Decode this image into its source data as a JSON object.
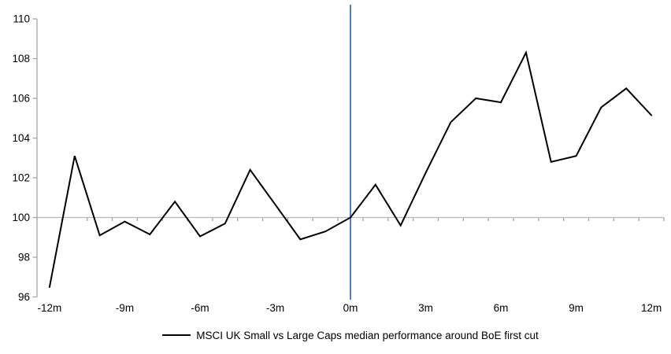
{
  "chart_data": {
    "type": "line",
    "title": "",
    "xlabel": "",
    "ylabel": "",
    "x": [
      -12,
      -11,
      -10,
      -9,
      -8,
      -7,
      -6,
      -5,
      -4,
      -3,
      -2,
      -1,
      0,
      1,
      2,
      3,
      4,
      5,
      6,
      7,
      8,
      9,
      10,
      11,
      12
    ],
    "series": [
      {
        "name": "MSCI UK Small vs Large Caps median performance around BoE first cut",
        "values": [
          96.5,
          103.1,
          99.1,
          99.8,
          99.15,
          100.8,
          99.05,
          99.7,
          102.4,
          100.65,
          98.9,
          99.3,
          100.0,
          101.65,
          99.6,
          102.25,
          104.8,
          106.0,
          105.8,
          108.3,
          102.8,
          103.1,
          105.55,
          106.5,
          105.15
        ]
      }
    ],
    "x_tick_positions": [
      -12,
      -9,
      -6,
      -3,
      0,
      3,
      6,
      9,
      12
    ],
    "x_tick_labels": [
      "-12m",
      "-9m",
      "-6m",
      "-3m",
      "0m",
      "3m",
      "6m",
      "9m",
      "12m"
    ],
    "y_ticks": [
      96,
      98,
      100,
      102,
      104,
      106,
      108,
      110
    ],
    "xlim": [
      -12.5,
      12.5
    ],
    "ylim": [
      96,
      110
    ],
    "baseline_value": 100,
    "event_line_x": 0,
    "grid": "off",
    "legend_position": "bottom-center",
    "colors": {
      "series": "#000000",
      "event_line": "#4f81bd",
      "baseline": "#b8b8b8",
      "axis": "#a6a6a6",
      "text": "#000000"
    }
  },
  "legend": {
    "label": "MSCI UK Small vs Large Caps median performance around BoE first cut"
  }
}
